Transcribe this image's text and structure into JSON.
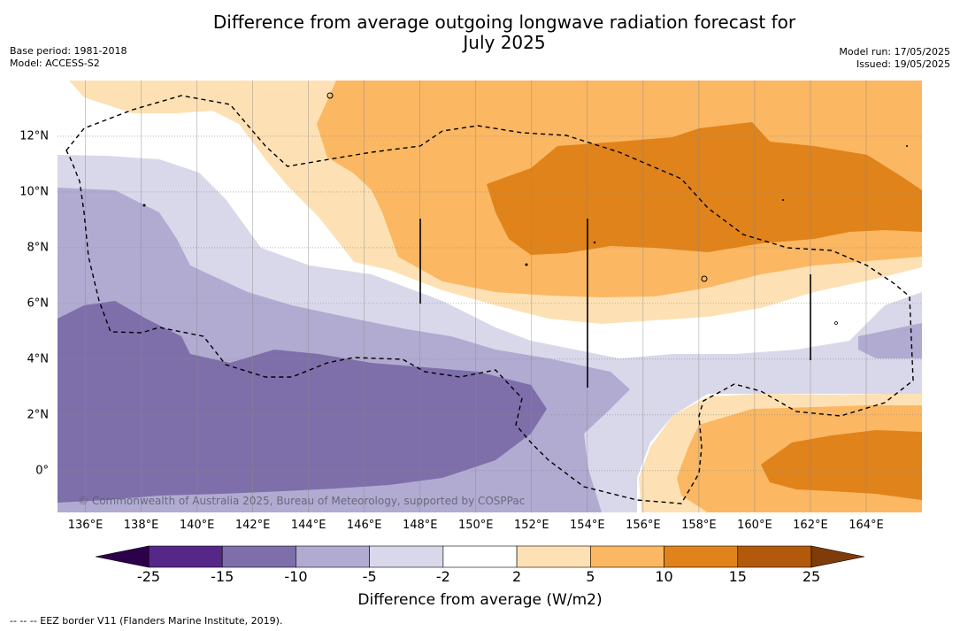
{
  "title": "Difference from average outgoing longwave radiation forecast for\nJuly 2025",
  "title_line1": "Difference from average outgoing longwave radiation forecast for",
  "title_line2": "July 2025",
  "base_period": "Base period: 1981-2018",
  "model": "Model: ACCESS-S2",
  "model_run": "Model run: 17/05/2025",
  "issued": "Issued: 19/05/2025",
  "copyright": "© Commonwealth of Australia 2025, Bureau of Meteorology, supported by COSPPac",
  "colorbar": {
    "label": "Difference from average (W/m2)",
    "ticks": [
      "-25",
      "-15",
      "-10",
      "-5",
      "-2",
      "2",
      "5",
      "10",
      "15",
      "25"
    ],
    "colors": [
      "#542788",
      "#7e6faa",
      "#b1abd2",
      "#d9d8ea",
      "#ffffff",
      "#fde1b4",
      "#fbb762",
      "#e0831b",
      "#b3590c"
    ],
    "under_color": "#2d004b",
    "over_color": "#7f3b08"
  },
  "footnote": "--  --  -- EEZ border V11 (Flanders Marine Institute, 2019).",
  "map": {
    "lat_labels": [
      "12°N",
      "10°N",
      "8°N",
      "6°N",
      "4°N",
      "2°N",
      "0°"
    ],
    "lat_values": [
      12,
      10,
      8,
      6,
      4,
      2,
      0
    ],
    "lon_labels": [
      "136°E",
      "138°E",
      "140°E",
      "142°E",
      "144°E",
      "146°E",
      "148°E",
      "150°E",
      "152°E",
      "154°E",
      "156°E",
      "158°E",
      "160°E",
      "162°E",
      "164°E"
    ],
    "lon_values": [
      136,
      138,
      140,
      142,
      144,
      146,
      148,
      150,
      152,
      154,
      156,
      158,
      160,
      162,
      164
    ],
    "lon_range": [
      135,
      166
    ],
    "lat_range": [
      -1.5,
      14
    ]
  }
}
